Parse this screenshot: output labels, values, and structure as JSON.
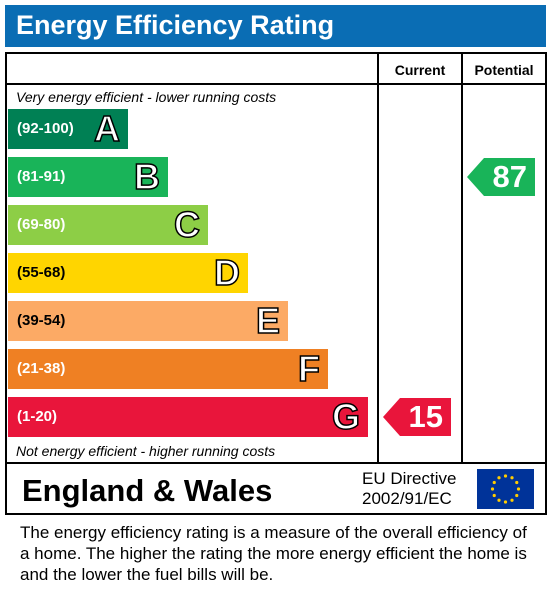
{
  "title": "Energy Efficiency Rating",
  "columns": {
    "current": "Current",
    "potential": "Potential"
  },
  "top_caption": "Very energy efficient - lower running costs",
  "bottom_caption": "Not energy efficient - higher running costs",
  "chart_data": {
    "type": "bar",
    "bands": [
      {
        "letter": "A",
        "range": "(92-100)",
        "color": "#008054"
      },
      {
        "letter": "B",
        "range": "(81-91)",
        "color": "#19b459"
      },
      {
        "letter": "C",
        "range": "(69-80)",
        "color": "#8dce46"
      },
      {
        "letter": "D",
        "range": "(55-68)",
        "color": "#ffd500"
      },
      {
        "letter": "E",
        "range": "(39-54)",
        "color": "#fcaa65"
      },
      {
        "letter": "F",
        "range": "(21-38)",
        "color": "#ef8023"
      },
      {
        "letter": "G",
        "range": "(1-20)",
        "color": "#e9153b"
      }
    ],
    "current": {
      "value": 15,
      "band": "G",
      "color": "#e9153b"
    },
    "potential": {
      "value": 87,
      "band": "B",
      "color": "#19b459"
    }
  },
  "footer": {
    "country": "England & Wales",
    "directive_line1": "EU Directive",
    "directive_line2": "2002/91/EC"
  },
  "description": "The energy efficiency rating is a measure of the overall efficiency of a home.  The higher the rating the more energy efficient the home is and the lower the fuel bills will be."
}
